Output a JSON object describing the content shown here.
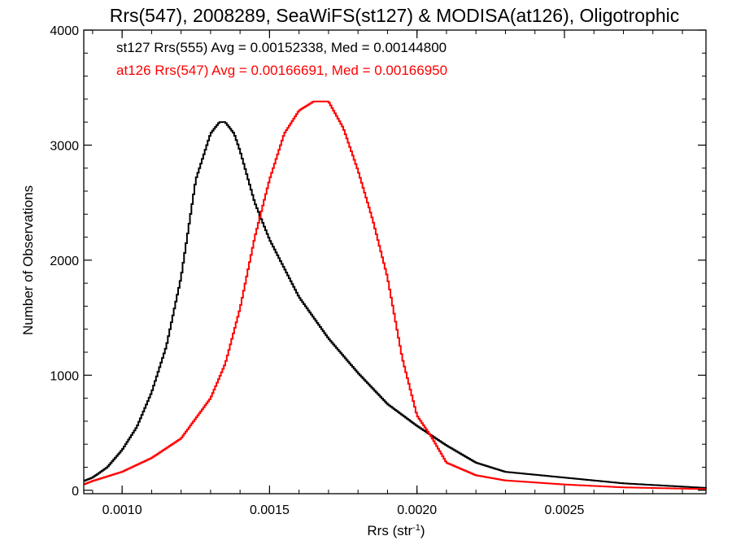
{
  "chart_data": {
    "type": "line",
    "title": "Rrs(547), 2008289, SeaWiFS(st127) & MODISA(at126), Oligotrophic",
    "xlabel": "Rrs (str",
    "xlabel_sup": "-1",
    "xlabel_close": ")",
    "ylabel": "Number of Observations",
    "xlim": [
      0.00087,
      0.00298
    ],
    "ylim": [
      -30,
      4000
    ],
    "x_ticks": [
      0.001,
      0.0015,
      0.002,
      0.0025
    ],
    "x_tick_labels": [
      "0.0010",
      "0.0015",
      "0.0020",
      "0.0025"
    ],
    "y_ticks": [
      0,
      1000,
      2000,
      3000,
      4000
    ],
    "y_tick_labels": [
      "0",
      "1000",
      "2000",
      "3000",
      "4000"
    ],
    "grid": false,
    "legend_position": "top-left",
    "series": [
      {
        "name": "st127 Rrs(555) Avg = 0.00152338, Med = 0.00144800",
        "color": "#000000",
        "step": true,
        "x": [
          0.00087,
          0.0009,
          0.00095,
          0.001,
          0.00105,
          0.0011,
          0.00115,
          0.0012,
          0.00125,
          0.0013,
          0.00133,
          0.00135,
          0.00138,
          0.0014,
          0.00145,
          0.0015,
          0.0016,
          0.0017,
          0.0018,
          0.0019,
          0.002,
          0.0021,
          0.0022,
          0.0023,
          0.0025,
          0.0027,
          0.00298
        ],
        "y": [
          80,
          110,
          200,
          350,
          550,
          850,
          1250,
          1850,
          2700,
          3100,
          3200,
          3200,
          3100,
          2950,
          2500,
          2180,
          1680,
          1320,
          1020,
          750,
          560,
          390,
          240,
          160,
          110,
          60,
          20
        ]
      },
      {
        "name": "at126 Rrs(547) Avg = 0.00166691, Med = 0.00166950",
        "color": "#ff0000",
        "step": true,
        "x": [
          0.00087,
          0.0009,
          0.001,
          0.0011,
          0.0012,
          0.0013,
          0.00135,
          0.0014,
          0.00145,
          0.0015,
          0.00155,
          0.0016,
          0.00165,
          0.0017,
          0.00175,
          0.0018,
          0.00185,
          0.0019,
          0.00195,
          0.002,
          0.00205,
          0.0021,
          0.0022,
          0.0023,
          0.0025,
          0.0027,
          0.00298
        ],
        "y": [
          50,
          80,
          160,
          280,
          450,
          800,
          1100,
          1580,
          2200,
          2700,
          3100,
          3300,
          3380,
          3380,
          3150,
          2780,
          2350,
          1850,
          1150,
          650,
          460,
          240,
          130,
          85,
          50,
          25,
          10
        ]
      }
    ]
  }
}
